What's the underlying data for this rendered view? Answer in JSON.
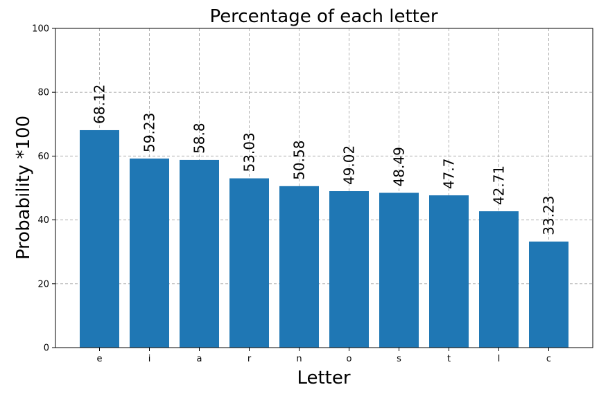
{
  "chart_data": {
    "type": "bar",
    "title": "Percentage of each letter",
    "xlabel": "Letter",
    "ylabel": "Probability *100",
    "categories": [
      "e",
      "i",
      "a",
      "r",
      "n",
      "o",
      "s",
      "t",
      "l",
      "c"
    ],
    "values": [
      68.12,
      59.23,
      58.8,
      53.03,
      50.58,
      49.02,
      48.49,
      47.7,
      42.71,
      33.23
    ],
    "data_labels": [
      "68.12",
      "59.23",
      "58.8",
      "53.03",
      "50.58",
      "49.02",
      "48.49",
      "47.7",
      "42.71",
      "33.23"
    ],
    "ylim": [
      0,
      100
    ],
    "yticks": [
      0,
      20,
      40,
      60,
      80,
      100
    ],
    "ytick_labels": [
      "0",
      "20",
      "40",
      "60",
      "80",
      "100"
    ],
    "grid": true,
    "bar_color": "#1f77b4"
  }
}
